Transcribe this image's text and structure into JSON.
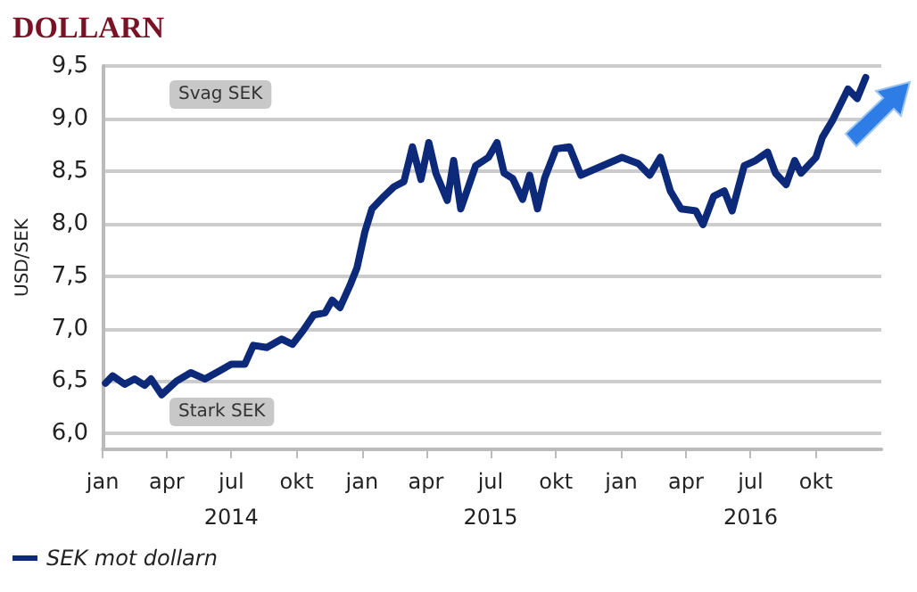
{
  "chart_data": {
    "type": "line",
    "title": "DOLLARN",
    "ylabel": "USD/SEK",
    "annotations": [
      "Svag SEK",
      "Stark SEK"
    ],
    "x": [
      "2014-01-05",
      "2014-01-15",
      "2014-02-01",
      "2014-02-15",
      "2014-03-01",
      "2014-03-10",
      "2014-03-25",
      "2014-04-15",
      "2014-05-05",
      "2014-05-25",
      "2014-06-15",
      "2014-07-01",
      "2014-07-20",
      "2014-08-01",
      "2014-08-20",
      "2014-09-10",
      "2014-09-25",
      "2014-10-10",
      "2014-10-25",
      "2014-11-10",
      "2014-11-20",
      "2014-12-01",
      "2014-12-15",
      "2014-12-25",
      "2015-01-05",
      "2015-01-15",
      "2015-02-01",
      "2015-02-15",
      "2015-03-01",
      "2015-03-13",
      "2015-03-25",
      "2015-04-05",
      "2015-04-15",
      "2015-05-01",
      "2015-05-10",
      "2015-05-20",
      "2015-06-10",
      "2015-06-28",
      "2015-07-10",
      "2015-07-20",
      "2015-08-01",
      "2015-08-15",
      "2015-08-25",
      "2015-09-05",
      "2015-09-15",
      "2015-10-01",
      "2015-10-20",
      "2015-11-05",
      "2016-01-02",
      "2016-01-25",
      "2016-02-10",
      "2016-02-25",
      "2016-03-10",
      "2016-03-25",
      "2016-04-15",
      "2016-04-25",
      "2016-05-10",
      "2016-05-25",
      "2016-06-05",
      "2016-06-22",
      "2016-07-08",
      "2016-07-25",
      "2016-08-05",
      "2016-08-20",
      "2016-09-01",
      "2016-09-10",
      "2016-10-01",
      "2016-10-10",
      "2016-10-25",
      "2016-11-15",
      "2016-11-28",
      "2016-12-10"
    ],
    "series": [
      {
        "name": "SEK mot dollarn",
        "color": "#0d2a7a",
        "values": [
          6.48,
          6.55,
          6.47,
          6.52,
          6.46,
          6.52,
          6.37,
          6.5,
          6.58,
          6.52,
          6.6,
          6.66,
          6.66,
          6.84,
          6.82,
          6.9,
          6.85,
          6.98,
          7.13,
          7.15,
          7.27,
          7.2,
          7.41,
          7.58,
          7.92,
          8.14,
          8.26,
          8.35,
          8.4,
          8.73,
          8.42,
          8.77,
          8.48,
          8.22,
          8.6,
          8.14,
          8.55,
          8.63,
          8.77,
          8.48,
          8.43,
          8.23,
          8.46,
          8.14,
          8.43,
          8.71,
          8.73,
          8.46,
          8.63,
          8.57,
          8.46,
          8.63,
          8.31,
          8.14,
          8.12,
          7.99,
          8.26,
          8.31,
          8.12,
          8.55,
          8.6,
          8.68,
          8.48,
          8.37,
          8.6,
          8.48,
          8.63,
          8.82,
          8.99,
          9.28,
          9.19,
          9.39
        ]
      }
    ],
    "xlim": [
      "2014-01-01",
      "2017-01-01"
    ],
    "xticks": [
      {
        "value": "2014-01-01",
        "label": "jan"
      },
      {
        "value": "2014-04-01",
        "label": "apr"
      },
      {
        "value": "2014-07-01",
        "label": "jul\n2014"
      },
      {
        "value": "2014-10-01",
        "label": "okt"
      },
      {
        "value": "2015-01-01",
        "label": "jan"
      },
      {
        "value": "2015-04-01",
        "label": "apr"
      },
      {
        "value": "2015-07-01",
        "label": "jul\n2015"
      },
      {
        "value": "2015-10-01",
        "label": "okt"
      },
      {
        "value": "2016-01-01",
        "label": "jan"
      },
      {
        "value": "2016-04-01",
        "label": "apr"
      },
      {
        "value": "2016-07-01",
        "label": "jul\n2016"
      },
      {
        "value": "2016-10-01",
        "label": "okt"
      }
    ],
    "ylim": [
      5.85,
      9.5
    ],
    "yticks": [
      {
        "value": 6,
        "label": "6,0"
      },
      {
        "value": 6.5,
        "label": "6,5"
      },
      {
        "value": 7,
        "label": "7,0"
      },
      {
        "value": 7.5,
        "label": "7,5"
      },
      {
        "value": 8,
        "label": "8,0"
      },
      {
        "value": 8.5,
        "label": "8,5"
      },
      {
        "value": 9,
        "label": "9,0"
      },
      {
        "value": 9.5,
        "label": "9,5"
      }
    ],
    "grid": "y",
    "legend": "bottom left",
    "marker": "none",
    "line_style": "solid"
  }
}
